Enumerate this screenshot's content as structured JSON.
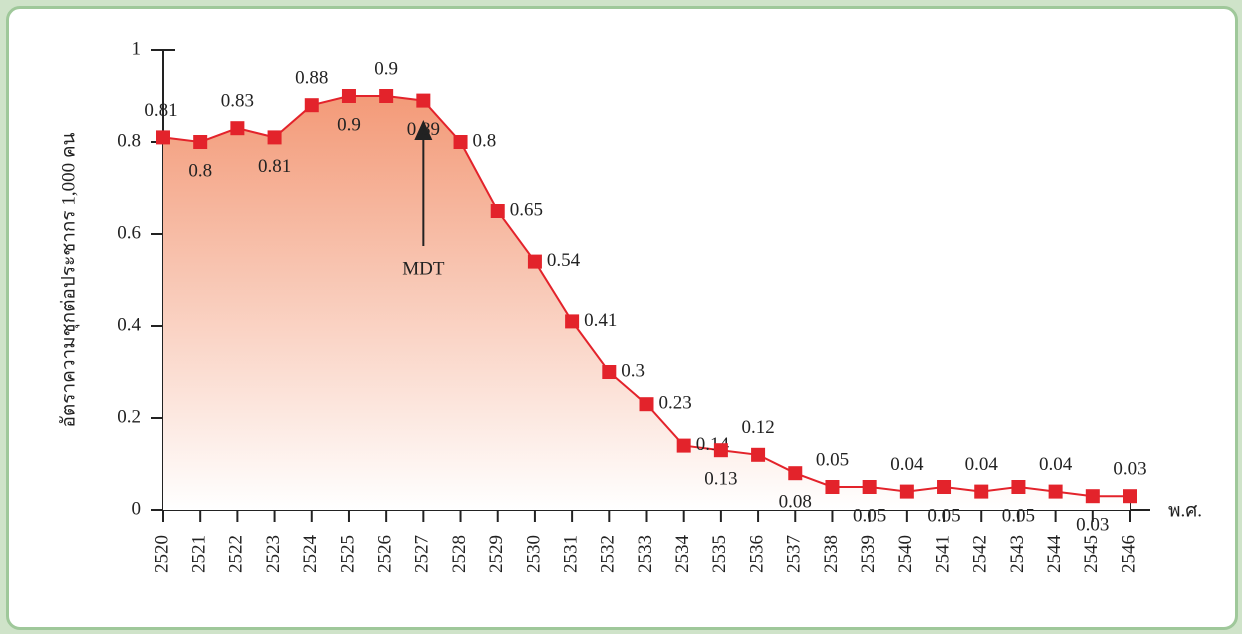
{
  "chart_data": {
    "type": "line",
    "y_label": "อัตราความชุกต่อประชากร 1,000 คน",
    "x_label": "พ.ศ.",
    "annotation": "MDT",
    "categories": [
      "2520",
      "2521",
      "2522",
      "2523",
      "2524",
      "2525",
      "2526",
      "2527",
      "2528",
      "2529",
      "2530",
      "2531",
      "2532",
      "2533",
      "2534",
      "2535",
      "2536",
      "2537",
      "2538",
      "2539",
      "2540",
      "2541",
      "2542",
      "2543",
      "2544",
      "2545",
      "2546"
    ],
    "series": [
      {
        "color": "#e3232b",
        "values": [
          0.81,
          0.8,
          0.83,
          0.81,
          0.88,
          0.9,
          0.9,
          0.89,
          0.8,
          0.65,
          0.54,
          0.41,
          0.3,
          0.23,
          0.14,
          0.13,
          0.12,
          0.08,
          0.05,
          0.05,
          0.04,
          0.05,
          0.04,
          0.05,
          0.04,
          0.03,
          0.03
        ]
      }
    ],
    "ylim": [
      0,
      1
    ],
    "yticks": [
      0,
      0.2,
      0.4,
      0.6,
      0.8,
      1
    ]
  }
}
